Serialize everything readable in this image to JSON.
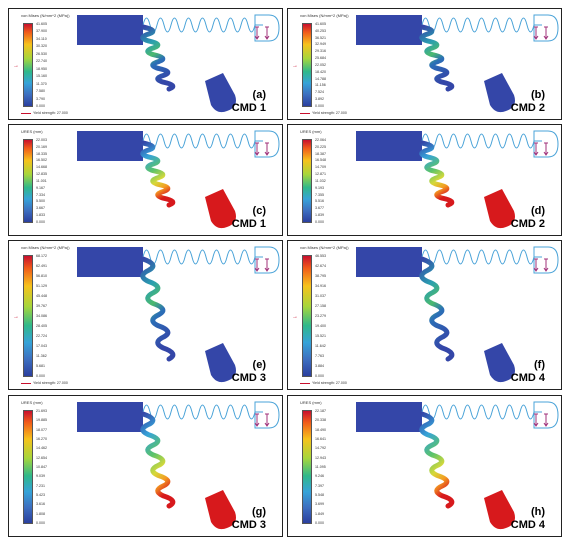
{
  "panels": [
    {
      "id": "a",
      "letter": "(a)",
      "cmd": "CMD 1",
      "type": "stress",
      "title": "von Mises (N/mm^2 (MPa))",
      "ticks": [
        "41.605",
        "37.900",
        "34.110",
        "30.320",
        "26.530",
        "22.740",
        "18.950",
        "15.160",
        "11.370",
        "7.580",
        "3.790",
        "0.000"
      ],
      "yield": "Yield strength: 27.000"
    },
    {
      "id": "b",
      "letter": "(b)",
      "cmd": "CMD 2",
      "type": "stress",
      "title": "von Mises (N/mm^2 (MPa))",
      "ticks": [
        "41.605",
        "40.253",
        "36.521",
        "32.949",
        "29.316",
        "25.684",
        "22.052",
        "18.420",
        "14.788",
        "11.156",
        "7.524",
        "3.892",
        "0.000"
      ],
      "yield": "Yield strength: 27.000"
    },
    {
      "id": "c",
      "letter": "(c)",
      "cmd": "CMD 1",
      "type": "disp",
      "title": "URES (mm)",
      "ticks": [
        "22.003",
        "20.169",
        "18.335",
        "16.502",
        "14.668",
        "12.835",
        "11.001",
        "9.167",
        "7.334",
        "5.500",
        "3.667",
        "1.833",
        "0.000"
      ],
      "yield": ""
    },
    {
      "id": "d",
      "letter": "(d)",
      "cmd": "CMD 2",
      "type": "disp",
      "title": "URES (mm)",
      "ticks": [
        "22.064",
        "20.225",
        "18.387",
        "16.548",
        "14.709",
        "12.871",
        "11.032",
        "9.193",
        "7.355",
        "5.516",
        "3.677",
        "1.839",
        "0.000"
      ],
      "yield": ""
    },
    {
      "id": "e",
      "letter": "(e)",
      "cmd": "CMD 3",
      "type": "stress",
      "title": "von Mises (N/mm^2 (MPa))",
      "ticks": [
        "68.172",
        "62.491",
        "56.810",
        "51.129",
        "45.448",
        "39.767",
        "34.086",
        "28.405",
        "22.724",
        "17.043",
        "11.362",
        "5.681",
        "0.000"
      ],
      "yield": "Yield strength: 27.000"
    },
    {
      "id": "f",
      "letter": "(f)",
      "cmd": "CMD 4",
      "type": "stress",
      "title": "von Mises (N/mm^2 (MPa))",
      "ticks": [
        "46.553",
        "42.674",
        "38.795",
        "34.916",
        "31.037",
        "27.158",
        "23.279",
        "19.400",
        "15.521",
        "11.642",
        "7.763",
        "3.884",
        "0.000"
      ],
      "yield": "Yield strength: 27.000"
    },
    {
      "id": "g",
      "letter": "(g)",
      "cmd": "CMD 3",
      "type": "disp",
      "title": "URES (mm)",
      "ticks": [
        "21.693",
        "19.885",
        "18.077",
        "16.270",
        "14.462",
        "12.654",
        "10.847",
        "9.039",
        "7.231",
        "5.423",
        "3.616",
        "1.808",
        "0.000"
      ],
      "yield": ""
    },
    {
      "id": "h",
      "letter": "(h)",
      "cmd": "CMD 4",
      "type": "disp",
      "title": "URES (mm)",
      "ticks": [
        "22.187",
        "20.338",
        "18.490",
        "16.641",
        "14.792",
        "12.943",
        "11.095",
        "9.246",
        "7.397",
        "5.548",
        "3.699",
        "1.849",
        "0.000"
      ],
      "yield": ""
    }
  ],
  "colors": {
    "body_blue": "#3446a8",
    "outline": "#4aa3d8",
    "max_red": "#d7191c",
    "yield_red": "#c8102e",
    "magenta_arrow": "#a0307a"
  }
}
